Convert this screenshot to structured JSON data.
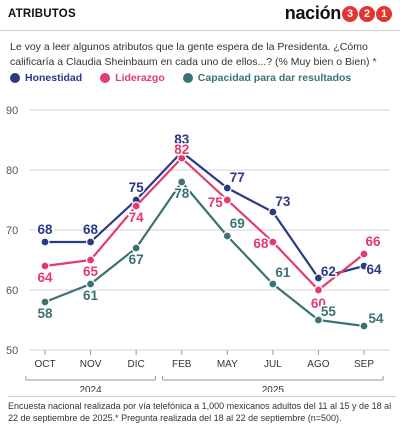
{
  "header": {
    "section_label": "ATRIBUTOS",
    "brand_word": "nación",
    "brand_digits": [
      "3",
      "2",
      "1"
    ],
    "brand_color": "#e3342f"
  },
  "question": "Le voy a leer algunos atributos que la gente espera de la Presidenta. ¿Cómo calificaría a Claudia Sheinbaum en cada uno de ellos...? (% Muy bien o Bien) *",
  "chart_data": {
    "type": "line",
    "categories": [
      "OCT",
      "NOV",
      "DIC",
      "FEB",
      "MAY",
      "JUL",
      "AGO",
      "SEP"
    ],
    "year_groups": [
      {
        "label": "2024",
        "from": 0,
        "to": 2
      },
      {
        "label": "2025",
        "from": 3,
        "to": 7
      }
    ],
    "ylim": [
      50,
      90
    ],
    "yticks": [
      50,
      60,
      70,
      80,
      90
    ],
    "grid": true,
    "legend_position": "top",
    "series": [
      {
        "name": "Honestidad",
        "color": "#2a3a85",
        "values": [
          68,
          68,
          75,
          83,
          77,
          73,
          62,
          64
        ]
      },
      {
        "name": "Liderazgo",
        "color": "#e33b6d",
        "values": [
          64,
          65,
          74,
          82,
          75,
          68,
          60,
          66
        ]
      },
      {
        "name": "Capacidad para dar resultados",
        "color": "#3d7272",
        "values": [
          58,
          61,
          67,
          78,
          69,
          61,
          55,
          54
        ]
      }
    ]
  },
  "footnote": "Encuesta nacional realizada por vía telefónica a 1,000 mexicanos adultos del 11 al 15 y de 18 al 22 de septiembre de 2025.* Pregunta realizada del 18 al 22 de septiembre (n=500)."
}
